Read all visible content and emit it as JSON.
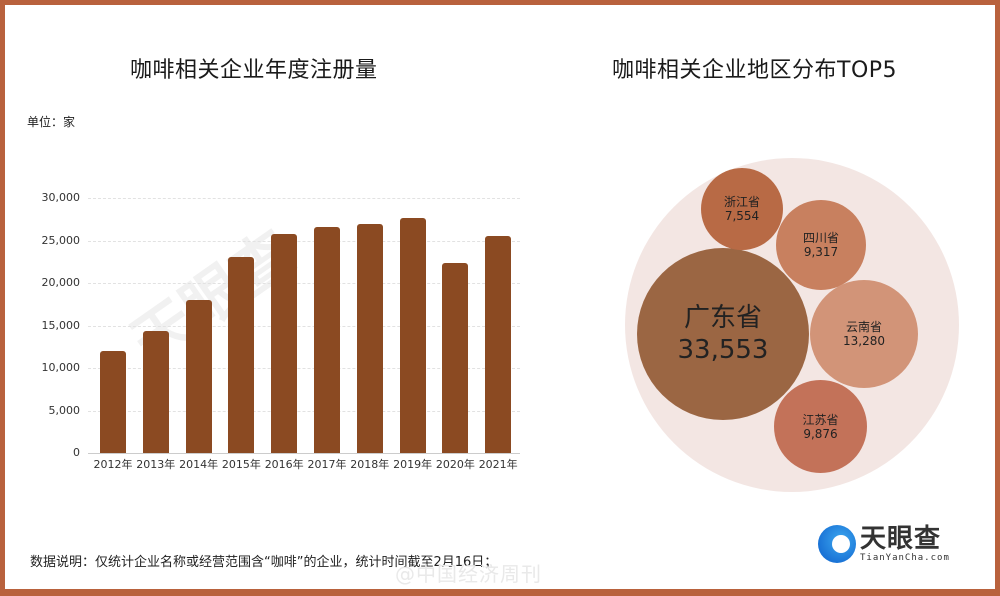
{
  "left_chart": {
    "title": "咖啡相关企业年度注册量",
    "unit": "单位：家",
    "yticks": [
      "30,000",
      "25,000",
      "20,000",
      "15,000",
      "10,000",
      "5,000",
      "0"
    ]
  },
  "right_chart": {
    "title": "咖啡相关企业地区分布TOP5",
    "bubbles": [
      {
        "name": "广东省",
        "value": "33,553",
        "color": "#9b6643"
      },
      {
        "name": "浙江省",
        "value": "7,554",
        "color": "#b86a45"
      },
      {
        "name": "四川省",
        "value": "9,317",
        "color": "#c8805f"
      },
      {
        "name": "云南省",
        "value": "13,280",
        "color": "#d29478"
      },
      {
        "name": "江苏省",
        "value": "9,876",
        "color": "#c37259"
      }
    ]
  },
  "footer": {
    "note": "数据说明：仅统计企业名称或经营范围含“咖啡”的企业，统计时间截至2月16日；",
    "weibo_watermark": "@中国经济周刊",
    "logo_cn": "天眼查",
    "logo_en": "TianYanCha.com"
  },
  "colors": {
    "frame": "#b9623d",
    "bar": "#8b4a22",
    "bubble_bg": "#f3e6e3"
  },
  "chart_data": [
    {
      "type": "bar",
      "title": "咖啡相关企业年度注册量",
      "xlabel": "",
      "ylabel": "单位：家",
      "categories": [
        "2012年",
        "2013年",
        "2014年",
        "2015年",
        "2016年",
        "2017年",
        "2018年",
        "2019年",
        "2020年",
        "2021年"
      ],
      "values": [
        12000,
        14400,
        18000,
        23100,
        25800,
        26600,
        26900,
        27600,
        22300,
        25500
      ],
      "ylim": [
        0,
        30000
      ],
      "yticks": [
        0,
        5000,
        10000,
        15000,
        20000,
        25000,
        30000
      ],
      "grid": true,
      "legend": null
    },
    {
      "type": "bubble",
      "title": "咖啡相关企业地区分布TOP5",
      "categories": [
        "广东省",
        "浙江省",
        "四川省",
        "云南省",
        "江苏省"
      ],
      "values": [
        33553,
        7554,
        9317,
        13280,
        9876
      ]
    }
  ]
}
